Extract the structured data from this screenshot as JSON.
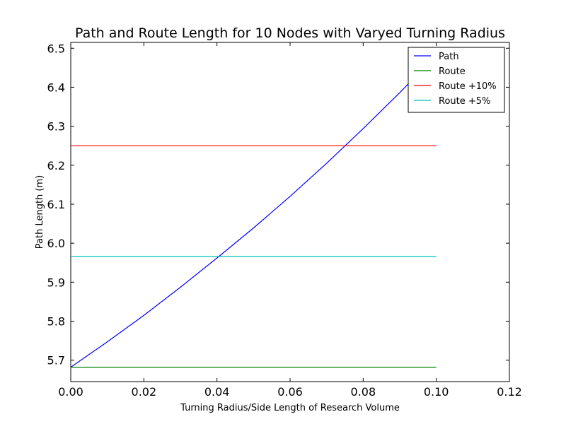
{
  "chart_data": {
    "type": "line",
    "title": "Path and Route Length for 10 Nodes with Varyed Turning Radius",
    "xlabel": "Turning Radius/Side Length of Research Volume",
    "ylabel": "Path Length (m)",
    "xlim": [
      0.0,
      0.12
    ],
    "ylim": [
      5.645,
      6.515
    ],
    "xticks": [
      "0.00",
      "0.02",
      "0.04",
      "0.06",
      "0.08",
      "0.10",
      "0.12"
    ],
    "xtick_values": [
      0.0,
      0.02,
      0.04,
      0.06,
      0.08,
      0.1,
      0.12
    ],
    "yticks": [
      "5.7",
      "5.8",
      "5.9",
      "6.0",
      "6.1",
      "6.2",
      "6.3",
      "6.4",
      "6.5"
    ],
    "ytick_values": [
      5.7,
      5.8,
      5.9,
      6.0,
      6.1,
      6.2,
      6.3,
      6.4,
      6.5
    ],
    "grid": false,
    "legend_position": "top-right",
    "series": [
      {
        "name": "Path",
        "color": "#0000ff",
        "x": [
          0.0,
          0.01,
          0.02,
          0.03,
          0.04,
          0.05,
          0.06,
          0.07,
          0.08,
          0.09,
          0.1
        ],
        "y": [
          5.682,
          5.747,
          5.815,
          5.887,
          5.962,
          6.039,
          6.12,
          6.205,
          6.294,
          6.386,
          6.483
        ]
      },
      {
        "name": "Route",
        "color": "#008000",
        "x": [
          0.0,
          0.1
        ],
        "y": [
          5.682,
          5.682
        ]
      },
      {
        "name": "Route +10%",
        "color": "#ff0000",
        "x": [
          0.0,
          0.1
        ],
        "y": [
          6.25,
          6.25
        ]
      },
      {
        "name": "Route +5%",
        "color": "#00bfbf",
        "x": [
          0.0,
          0.1
        ],
        "y": [
          5.966,
          5.966
        ]
      }
    ]
  }
}
